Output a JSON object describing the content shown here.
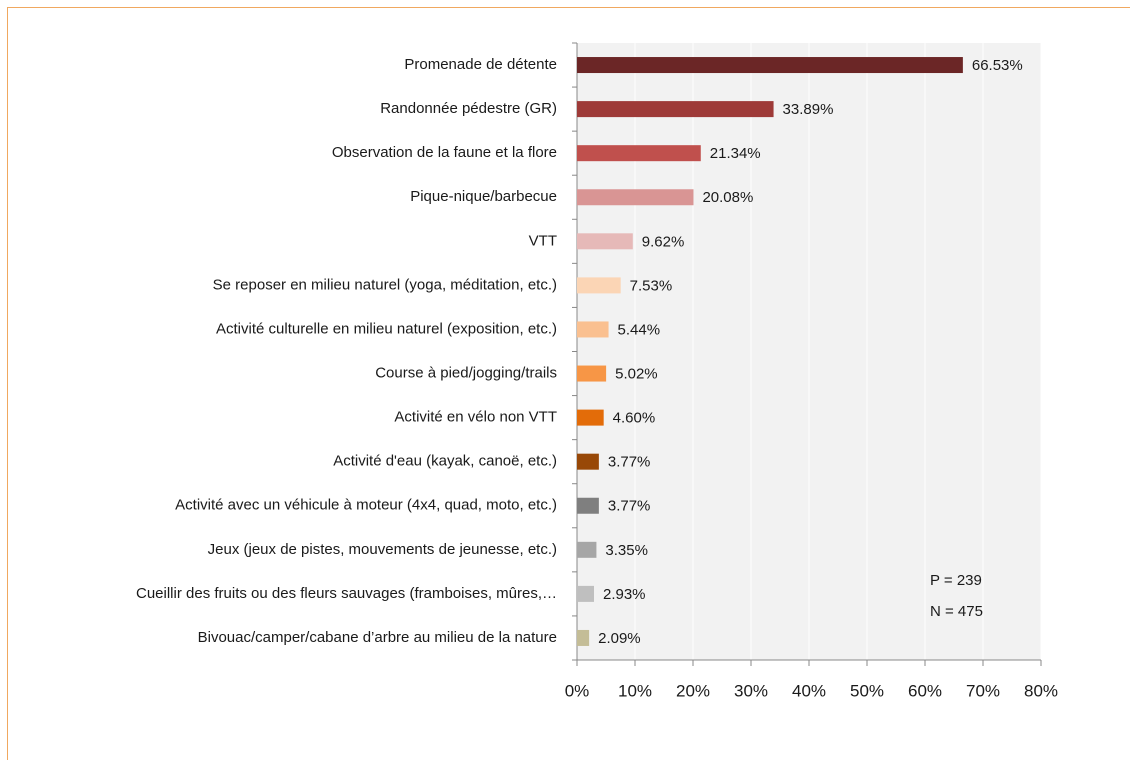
{
  "chart_data": {
    "type": "bar",
    "orientation": "horizontal",
    "categories": [
      "Promenade de détente",
      "Randonnée pédestre (GR)",
      "Observation de la faune et la flore",
      "Pique-nique/barbecue",
      "VTT",
      "Se reposer en milieu naturel (yoga, méditation, etc.)",
      "Activité culturelle en milieu naturel (exposition, etc.)",
      "Course à pied/jogging/trails",
      "Activité en vélo non VTT",
      "Activité d'eau (kayak, canoë, etc.)",
      "Activité avec un véhicule à moteur (4x4, quad, moto, etc.)",
      "Jeux (jeux de pistes, mouvements de jeunesse, etc.)",
      "Cueillir des fruits ou des fleurs sauvages (framboises, mûres,…",
      "Bivouac/camper/cabane d’arbre au milieu de la nature"
    ],
    "values": [
      66.53,
      33.89,
      21.34,
      20.08,
      9.62,
      7.53,
      5.44,
      5.02,
      4.6,
      3.77,
      3.77,
      3.35,
      2.93,
      2.09
    ],
    "value_labels": [
      "66.53%",
      "33.89%",
      "21.34%",
      "20.08%",
      "9.62%",
      "7.53%",
      "5.44%",
      "5.02%",
      "4.60%",
      "3.77%",
      "3.77%",
      "3.35%",
      "2.93%",
      "2.09%"
    ],
    "colors": [
      "#6b2626",
      "#9e3a38",
      "#c0504d",
      "#d99594",
      "#e6b9b8",
      "#fbd5b5",
      "#fac090",
      "#f79646",
      "#e36c09",
      "#984807",
      "#7f7f7f",
      "#a6a6a6",
      "#bfbfbf",
      "#c4bd97"
    ],
    "xlim": [
      0,
      80
    ],
    "xticks": [
      {
        "value": 0,
        "label": "0%"
      },
      {
        "value": 10,
        "label": "10%"
      },
      {
        "value": 20,
        "label": "20%"
      },
      {
        "value": 30,
        "label": "30%"
      },
      {
        "value": 40,
        "label": "40%"
      },
      {
        "value": 50,
        "label": "50%"
      },
      {
        "value": 60,
        "label": "60%"
      },
      {
        "value": 70,
        "label": "70%"
      },
      {
        "value": 80,
        "label": "80%"
      }
    ],
    "grid": true,
    "annotations": [
      "P = 239",
      "N = 475"
    ]
  }
}
